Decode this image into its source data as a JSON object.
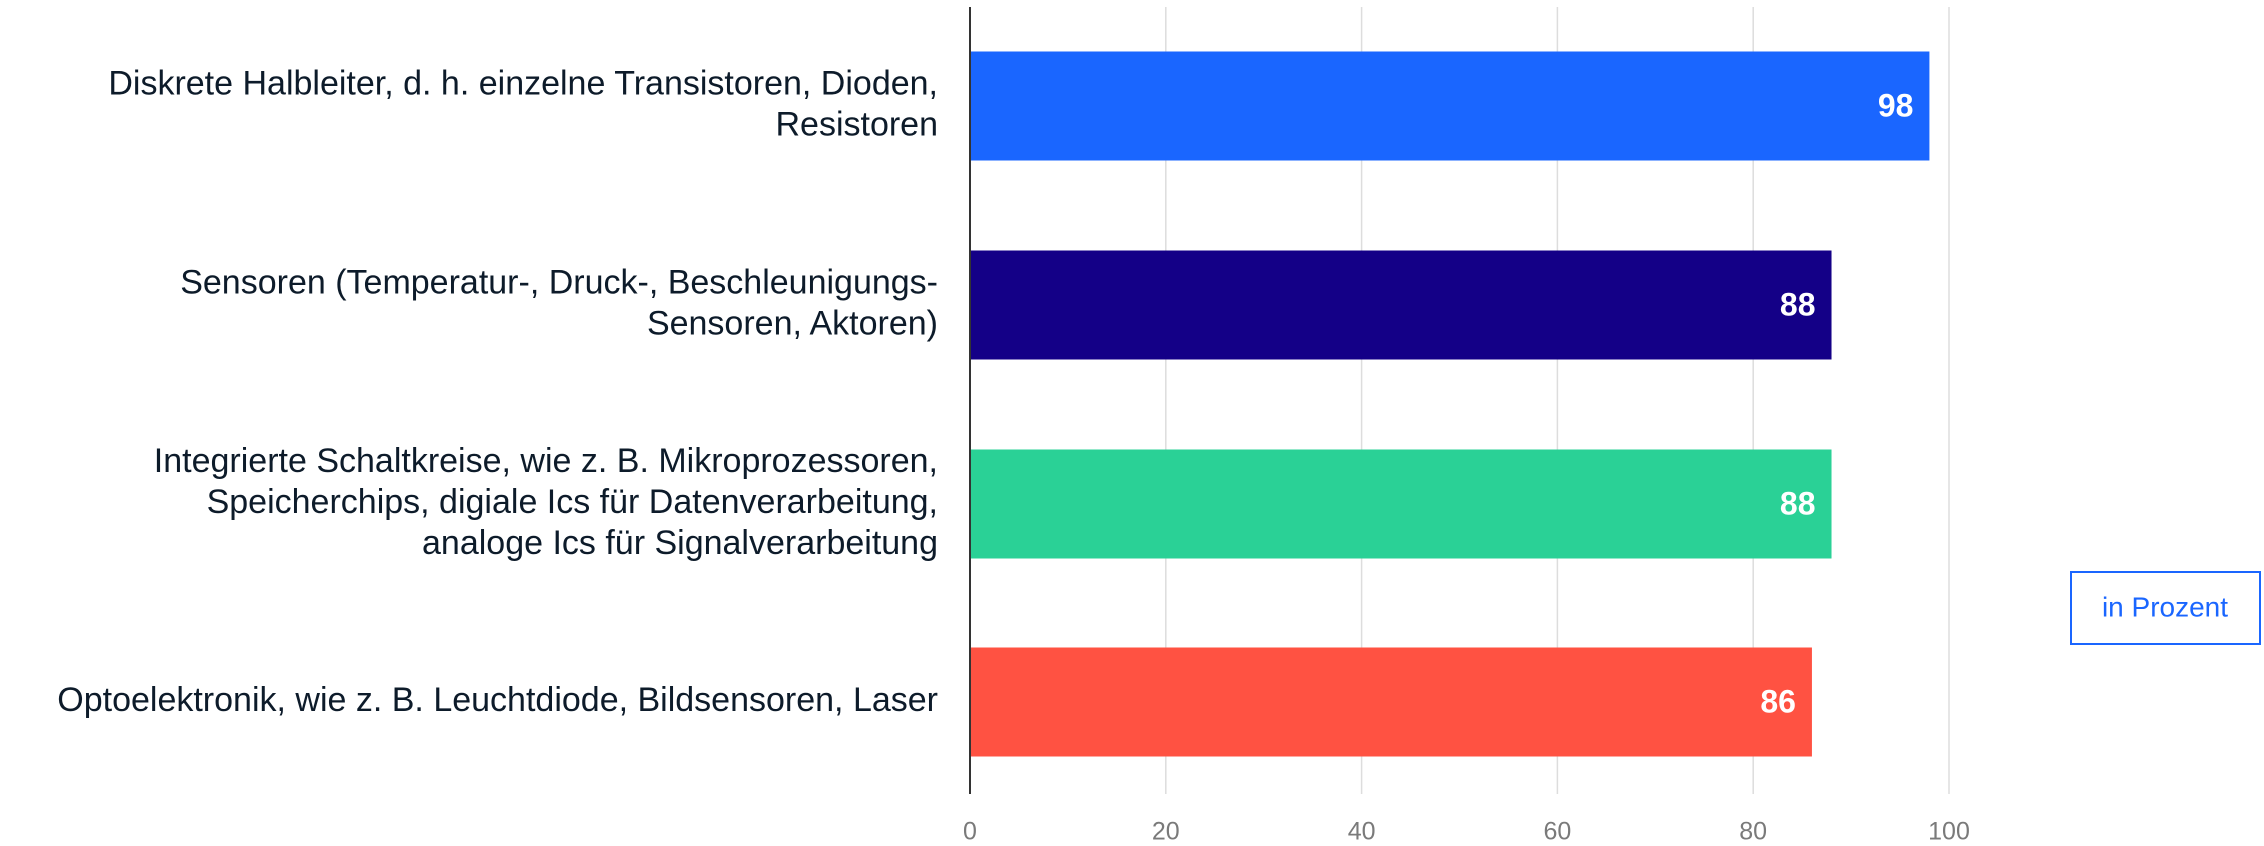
{
  "chart_data": {
    "type": "bar",
    "orientation": "horizontal",
    "categories": [
      "Diskrete Halbleiter, d. h. einzelne Transistoren, Dioden,\nResistoren",
      "Sensoren (Temperatur-, Druck-, Beschleunigungs-\nSensoren, Aktoren)",
      "Integrierte Schaltkreise, wie z. B. Mikroprozessoren,\nSpeicherchips, digiale Ics für Datenverarbeitung,\nanaloge Ics für Signalverarbeitung",
      "Optoelektronik, wie z. B. Leuchtdiode, Bildsensoren, Laser"
    ],
    "values": [
      98,
      88,
      88,
      86
    ],
    "colors": [
      "#1a66ff",
      "#140087",
      "#2ad196",
      "#ff5242"
    ],
    "xlim": [
      0,
      100
    ],
    "xticks": [
      0,
      20,
      40,
      60,
      80,
      100
    ],
    "grid": true,
    "unit_label": "in Prozent"
  }
}
